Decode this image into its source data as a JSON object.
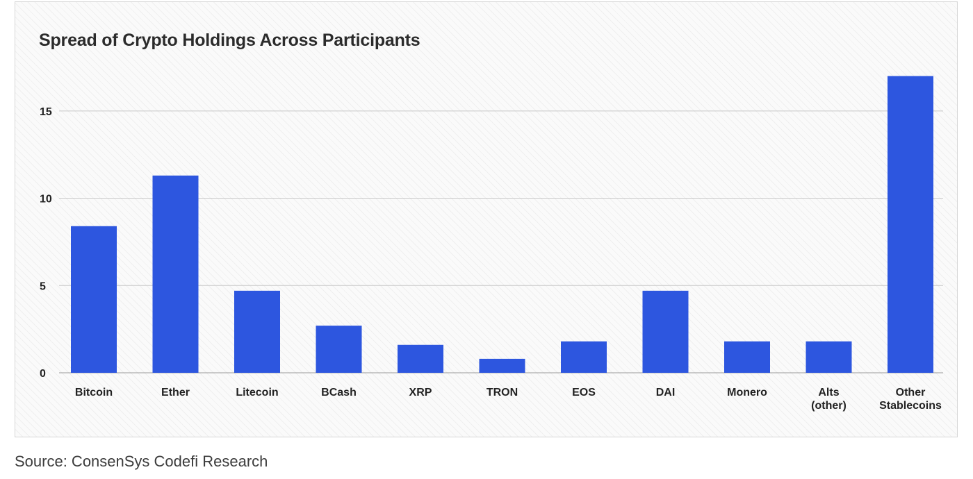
{
  "source": "Source: ConsenSys Codefi Research",
  "chart_data": {
    "type": "bar",
    "title": "Spread of Crypto Holdings Across Participants",
    "xlabel": "",
    "ylabel": "",
    "categories": [
      [
        "Bitcoin"
      ],
      [
        "Ether"
      ],
      [
        "Litecoin"
      ],
      [
        "BCash"
      ],
      [
        "XRP"
      ],
      [
        "TRON"
      ],
      [
        "EOS"
      ],
      [
        "DAI"
      ],
      [
        "Monero"
      ],
      [
        "Alts",
        "(other)"
      ],
      [
        "Other",
        "Stablecoins"
      ]
    ],
    "values": [
      8.4,
      11.3,
      4.7,
      2.7,
      1.6,
      0.8,
      1.8,
      4.7,
      1.8,
      1.8,
      17.0
    ],
    "yticks": [
      0,
      5,
      10,
      15
    ],
    "ylim": [
      0,
      18
    ],
    "grid": true,
    "colors": {
      "bar": "#2d56df",
      "grid": "#c8c8c8",
      "tick_text": "#222222"
    }
  }
}
